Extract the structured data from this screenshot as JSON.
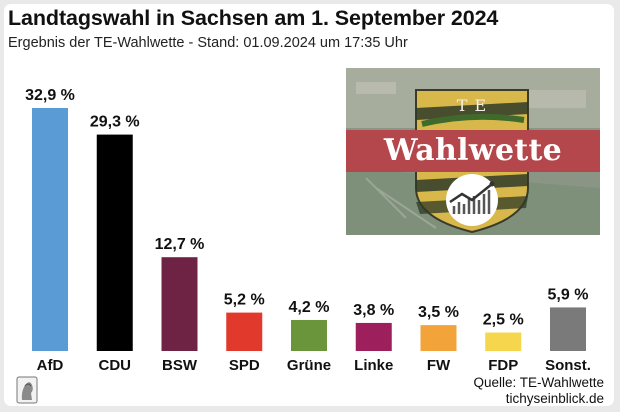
{
  "header": {
    "title": "Landtagswahl in Sachsen am 1. September 2024",
    "subtitle": "Ergebnis der TE-Wahlwette - Stand: 01.09.2024 um 17:35 Uhr"
  },
  "badge": {
    "wordmark": "Wahlwette",
    "initials": "T E"
  },
  "footer": {
    "source": "Quelle: TE-Wahlwette",
    "site": "tichyseinblick.de"
  },
  "chart_data": {
    "type": "bar",
    "categories": [
      "AfD",
      "CDU",
      "BSW",
      "SPD",
      "Grüne",
      "Linke",
      "FW",
      "FDP",
      "Sonst."
    ],
    "values": [
      32.9,
      29.3,
      12.7,
      5.2,
      4.2,
      3.8,
      3.5,
      2.5,
      5.9
    ],
    "value_labels": [
      "32,9 %",
      "29,3 %",
      "12,7 %",
      "5,2 %",
      "4,2 %",
      "3,8 %",
      "3,5 %",
      "2,5 %",
      "5,9 %"
    ],
    "colors": [
      "#5b9bd5",
      "#000000",
      "#6e2344",
      "#e1392b",
      "#6b953a",
      "#9d1f5b",
      "#f2a33a",
      "#f5d64c",
      "#7a7a7a"
    ],
    "title": "Landtagswahl in Sachsen am 1. September 2024",
    "xlabel": "",
    "ylabel": "",
    "ylim": [
      0,
      32.9
    ],
    "grid": false,
    "legend": "none"
  }
}
